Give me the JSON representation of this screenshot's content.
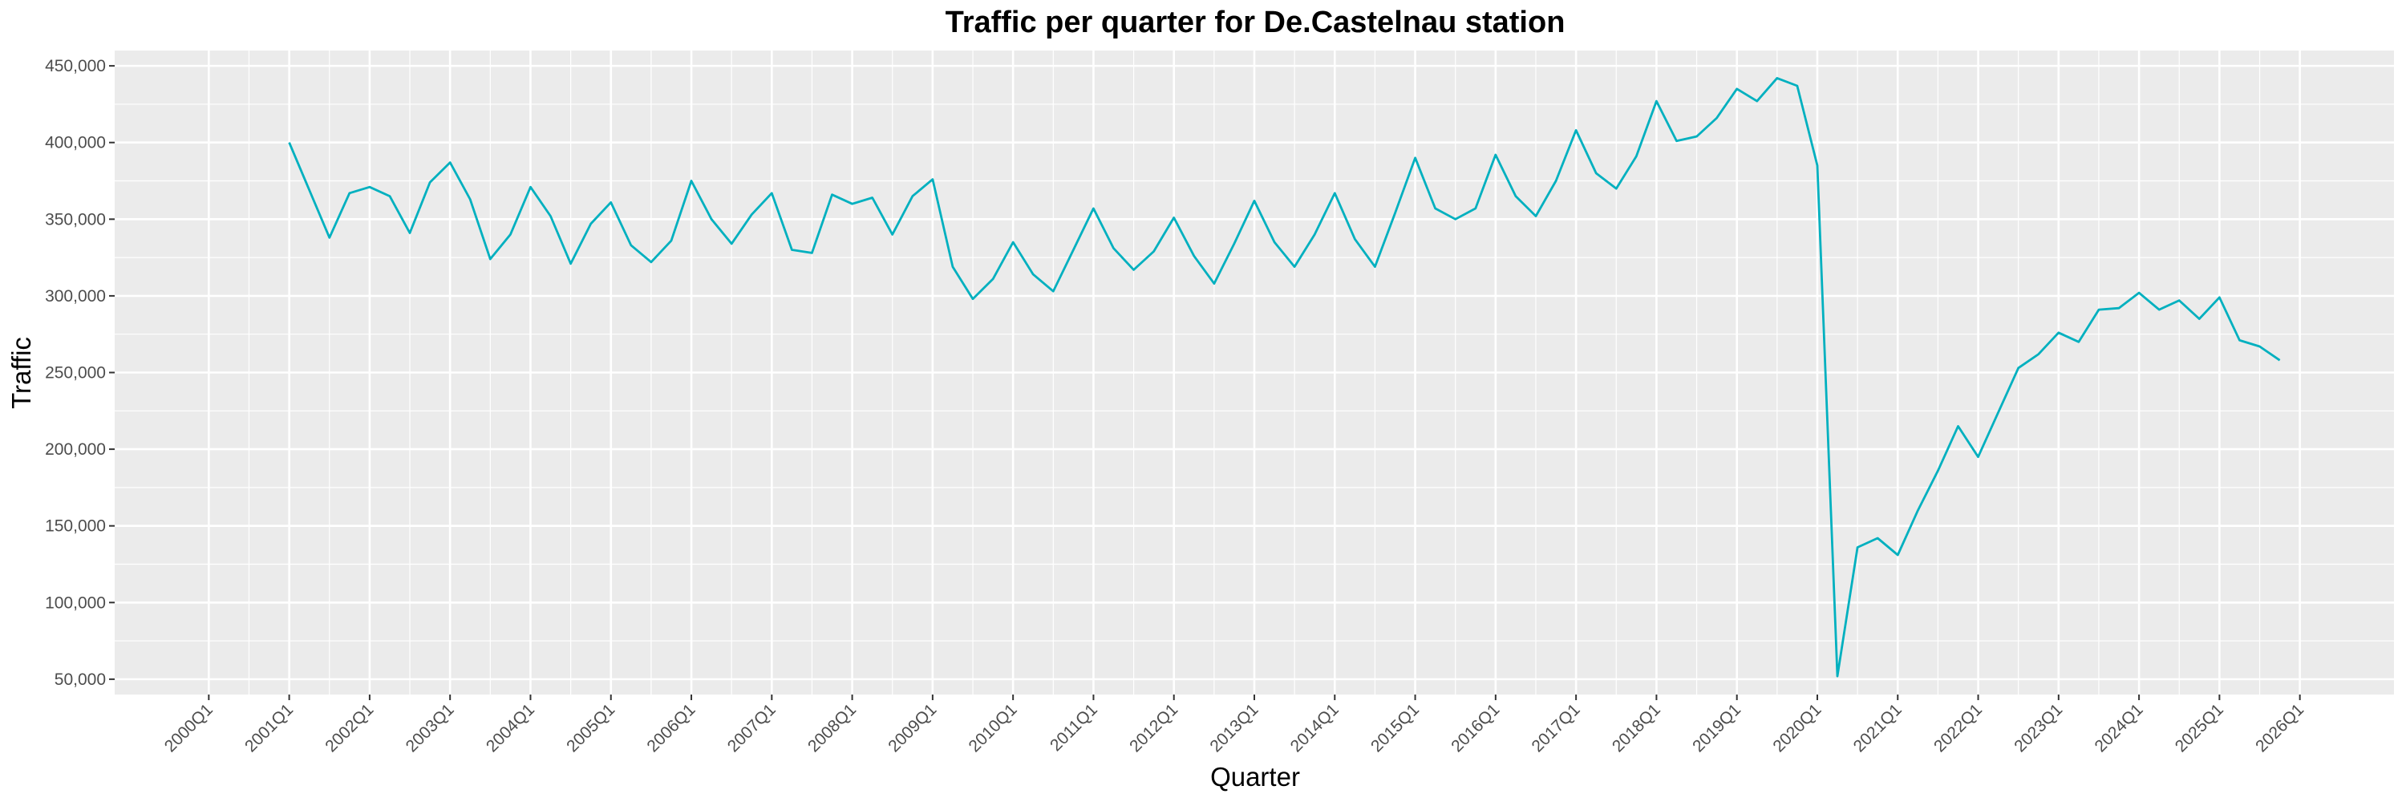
{
  "chart_data": {
    "type": "line",
    "title": "Traffic per quarter for De.Castelnau station",
    "xlabel": "Quarter",
    "ylabel": "Traffic",
    "x_ticks": [
      "2000Q1",
      "2001Q1",
      "2002Q1",
      "2003Q1",
      "2004Q1",
      "2005Q1",
      "2006Q1",
      "2007Q1",
      "2008Q1",
      "2009Q1",
      "2010Q1",
      "2011Q1",
      "2012Q1",
      "2013Q1",
      "2014Q1",
      "2015Q1",
      "2016Q1",
      "2017Q1",
      "2018Q1",
      "2019Q1",
      "2020Q1",
      "2021Q1",
      "2022Q1",
      "2023Q1",
      "2024Q1",
      "2025Q1",
      "2026Q1"
    ],
    "y_ticks": [
      50000,
      100000,
      150000,
      200000,
      250000,
      300000,
      350000,
      400000,
      450000
    ],
    "y_tick_labels": [
      "50,000",
      "100,000",
      "150,000",
      "200,000",
      "250,000",
      "300,000",
      "350,000",
      "400,000",
      "450,000"
    ],
    "xlim": [
      "2000Q1",
      "2026Q1"
    ],
    "ylim": [
      40000,
      460000
    ],
    "grid": true,
    "line_color": "#00B0BF",
    "panel_color": "#EBEBEB",
    "series": [
      {
        "x": [
          "2001Q1",
          "2001Q2",
          "2001Q3",
          "2001Q4",
          "2002Q1",
          "2002Q2",
          "2002Q3",
          "2002Q4",
          "2003Q1",
          "2003Q2",
          "2003Q3",
          "2003Q4",
          "2004Q1",
          "2004Q2",
          "2004Q3",
          "2004Q4",
          "2005Q1",
          "2005Q2",
          "2005Q3",
          "2005Q4",
          "2006Q1",
          "2006Q2",
          "2006Q3",
          "2006Q4",
          "2007Q1",
          "2007Q2",
          "2007Q3",
          "2007Q4",
          "2008Q1",
          "2008Q2",
          "2008Q3",
          "2008Q4",
          "2009Q1",
          "2009Q2",
          "2009Q3",
          "2009Q4",
          "2010Q1",
          "2010Q2",
          "2010Q3",
          "2010Q4",
          "2011Q1",
          "2011Q2",
          "2011Q3",
          "2011Q4",
          "2012Q1",
          "2012Q2",
          "2012Q3",
          "2012Q4",
          "2013Q1",
          "2013Q2",
          "2013Q3",
          "2013Q4",
          "2014Q1",
          "2014Q2",
          "2014Q3",
          "2014Q4",
          "2015Q1",
          "2015Q2",
          "2015Q3",
          "2015Q4",
          "2016Q1",
          "2016Q2",
          "2016Q3",
          "2016Q4",
          "2017Q1",
          "2017Q2",
          "2017Q3",
          "2017Q4",
          "2018Q1",
          "2018Q2",
          "2018Q3",
          "2018Q4",
          "2019Q1",
          "2019Q2",
          "2019Q3",
          "2019Q4",
          "2020Q1",
          "2020Q2",
          "2020Q3",
          "2020Q4",
          "2021Q1",
          "2021Q2",
          "2021Q3",
          "2021Q4",
          "2022Q1",
          "2022Q2",
          "2022Q3",
          "2022Q4",
          "2023Q1",
          "2023Q2",
          "2023Q3",
          "2023Q4",
          "2024Q1",
          "2024Q2",
          "2024Q3",
          "2024Q4",
          "2025Q1",
          "2025Q2",
          "2025Q3",
          "2025Q4"
        ],
        "values": [
          400000,
          369000,
          338000,
          367000,
          371000,
          365000,
          341000,
          374000,
          387000,
          363000,
          324000,
          340000,
          371000,
          352000,
          321000,
          347000,
          361000,
          333000,
          322000,
          336000,
          375000,
          350000,
          334000,
          353000,
          367000,
          330000,
          328000,
          366000,
          360000,
          364000,
          340000,
          365000,
          376000,
          319000,
          298000,
          311000,
          335000,
          314000,
          303000,
          330000,
          357000,
          331000,
          317000,
          329000,
          351000,
          326000,
          308000,
          334000,
          362000,
          335000,
          319000,
          340000,
          367000,
          337000,
          319000,
          354000,
          390000,
          357000,
          350000,
          357000,
          392000,
          365000,
          352000,
          375000,
          408000,
          380000,
          370000,
          391000,
          427000,
          401000,
          404000,
          416000,
          435000,
          427000,
          442000,
          437000,
          385000,
          52000,
          136000,
          142000,
          131000,
          160000,
          186000,
          215000,
          195000,
          224000,
          253000,
          262000,
          276000,
          270000,
          291000,
          292000,
          302000,
          291000,
          297000,
          285000,
          299000,
          271000,
          267000,
          258000
        ]
      }
    ]
  }
}
